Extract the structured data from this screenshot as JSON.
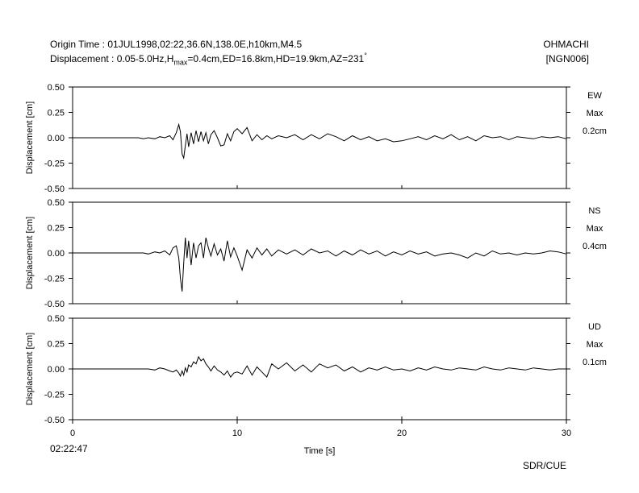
{
  "header": {
    "origin_line": "Origin Time : 01JUL1998,02:22,36.6N,138.0E,h10km,M4.5",
    "disp_prefix": "Displacement : 0.05-5.0Hz,H",
    "disp_sub": "max",
    "disp_suffix": "=0.4cm,ED=16.8km,HD=19.9km,AZ=231",
    "disp_degree": "°",
    "station_owner": "OHMACHI",
    "station_code": "[NGN006]"
  },
  "footer": {
    "start_time": "02:22:47",
    "credit": "SDR/CUE"
  },
  "chart_data": {
    "type": "line",
    "xlabel": "Time [s]",
    "xlim": [
      0,
      30
    ],
    "xticks": [
      "0",
      "10",
      "20",
      "30"
    ],
    "ylabel": "Displacement [cm]",
    "ylim": [
      -0.5,
      0.5
    ],
    "yticks": [
      "0.50",
      "0.25",
      "0.00",
      "-0.25",
      "-0.50"
    ],
    "grid": false,
    "colors": {
      "trace": "#000000",
      "axes": "#000000"
    },
    "series": [
      {
        "name": "EW",
        "max_label": "Max",
        "max_value": "0.2cm",
        "x": [
          0,
          4.0,
          4.3,
          4.6,
          5.0,
          5.3,
          5.6,
          5.9,
          6.1,
          6.3,
          6.45,
          6.55,
          6.65,
          6.75,
          6.85,
          6.95,
          7.05,
          7.2,
          7.35,
          7.5,
          7.65,
          7.8,
          7.95,
          8.1,
          8.25,
          8.4,
          8.6,
          8.8,
          9.0,
          9.2,
          9.4,
          9.6,
          9.8,
          10.0,
          10.3,
          10.6,
          10.9,
          11.2,
          11.5,
          11.8,
          12.1,
          12.5,
          13.0,
          13.5,
          14.0,
          14.5,
          15.0,
          15.5,
          16.0,
          16.5,
          17.0,
          17.5,
          18.0,
          18.5,
          19.0,
          19.5,
          20.0,
          20.5,
          21.0,
          21.5,
          22.0,
          22.5,
          23.0,
          23.5,
          24.0,
          24.5,
          25.0,
          25.5,
          26.0,
          26.5,
          27.0,
          27.5,
          28.0,
          28.5,
          29.0,
          29.5,
          30.0
        ],
        "y": [
          0,
          0,
          -0.01,
          0.0,
          -0.01,
          0.01,
          0.0,
          0.02,
          -0.02,
          0.05,
          0.13,
          0.06,
          -0.16,
          -0.2,
          -0.08,
          0.04,
          -0.09,
          0.05,
          -0.06,
          0.07,
          -0.04,
          0.06,
          -0.03,
          0.05,
          -0.06,
          0.03,
          0.07,
          0.0,
          -0.08,
          -0.07,
          0.04,
          -0.03,
          0.06,
          0.09,
          0.04,
          0.1,
          -0.03,
          0.03,
          -0.02,
          0.02,
          -0.01,
          0.02,
          0.0,
          0.03,
          -0.02,
          0.03,
          -0.01,
          0.04,
          0.01,
          -0.03,
          0.02,
          -0.02,
          0.01,
          -0.03,
          -0.01,
          -0.04,
          -0.03,
          -0.01,
          0.01,
          -0.02,
          0.02,
          -0.01,
          0.03,
          -0.02,
          0.01,
          -0.03,
          0.02,
          0.0,
          0.01,
          -0.02,
          0.01,
          0.0,
          -0.01,
          0.01,
          0.0,
          0.01,
          -0.01
        ]
      },
      {
        "name": "NS",
        "max_label": "Max",
        "max_value": "0.4cm",
        "x": [
          0,
          4.0,
          4.3,
          4.6,
          5.0,
          5.3,
          5.6,
          5.9,
          6.1,
          6.3,
          6.45,
          6.55,
          6.65,
          6.75,
          6.85,
          6.95,
          7.05,
          7.2,
          7.35,
          7.5,
          7.65,
          7.8,
          7.95,
          8.1,
          8.25,
          8.4,
          8.6,
          8.8,
          9.0,
          9.2,
          9.4,
          9.6,
          9.8,
          10.0,
          10.3,
          10.6,
          10.9,
          11.2,
          11.5,
          11.8,
          12.1,
          12.5,
          13.0,
          13.5,
          14.0,
          14.5,
          15.0,
          15.5,
          16.0,
          16.5,
          17.0,
          17.5,
          18.0,
          18.5,
          19.0,
          19.5,
          20.0,
          20.5,
          21.0,
          21.5,
          22.0,
          22.5,
          23.0,
          23.5,
          24.0,
          24.5,
          25.0,
          25.5,
          26.0,
          26.5,
          27.0,
          27.5,
          28.0,
          28.5,
          29.0,
          29.5,
          30.0
        ],
        "y": [
          0,
          0,
          0.0,
          -0.01,
          0.01,
          0.0,
          0.02,
          -0.02,
          0.05,
          0.07,
          -0.05,
          -0.25,
          -0.38,
          -0.1,
          0.15,
          -0.05,
          0.12,
          -0.12,
          0.1,
          -0.05,
          0.07,
          0.1,
          -0.05,
          0.15,
          0.05,
          -0.03,
          0.09,
          -0.02,
          0.04,
          -0.08,
          0.12,
          -0.04,
          0.05,
          -0.03,
          -0.17,
          0.03,
          -0.05,
          0.05,
          -0.02,
          0.04,
          -0.03,
          0.03,
          -0.01,
          0.03,
          -0.02,
          0.04,
          0.0,
          0.02,
          -0.03,
          0.02,
          -0.02,
          0.03,
          -0.01,
          0.02,
          -0.03,
          0.01,
          -0.02,
          0.02,
          -0.01,
          0.01,
          -0.03,
          -0.01,
          0.0,
          -0.02,
          -0.05,
          0.0,
          -0.03,
          0.02,
          -0.01,
          0.0,
          -0.02,
          0.0,
          -0.01,
          0.0,
          0.02,
          0.01,
          -0.01
        ]
      },
      {
        "name": "UD",
        "max_label": "Max",
        "max_value": "0.1cm",
        "x": [
          0,
          4.0,
          4.3,
          4.6,
          5.0,
          5.3,
          5.6,
          5.9,
          6.1,
          6.3,
          6.45,
          6.55,
          6.65,
          6.75,
          6.85,
          6.95,
          7.05,
          7.2,
          7.35,
          7.5,
          7.65,
          7.8,
          7.95,
          8.1,
          8.25,
          8.4,
          8.6,
          8.8,
          9.0,
          9.2,
          9.4,
          9.6,
          9.8,
          10.0,
          10.3,
          10.6,
          10.9,
          11.2,
          11.5,
          11.8,
          12.1,
          12.5,
          13.0,
          13.5,
          14.0,
          14.5,
          15.0,
          15.5,
          16.0,
          16.5,
          17.0,
          17.5,
          18.0,
          18.5,
          19.0,
          19.5,
          20.0,
          20.5,
          21.0,
          21.5,
          22.0,
          22.5,
          23.0,
          23.5,
          24.0,
          24.5,
          25.0,
          25.5,
          26.0,
          26.5,
          27.0,
          27.5,
          28.0,
          28.5,
          29.0,
          29.5,
          30.0
        ],
        "y": [
          0,
          0,
          0.0,
          0.0,
          -0.01,
          0.01,
          0.0,
          -0.02,
          -0.03,
          -0.01,
          -0.04,
          -0.07,
          -0.02,
          -0.06,
          0.01,
          -0.03,
          0.04,
          0.02,
          0.07,
          0.05,
          0.12,
          0.08,
          0.1,
          0.05,
          0.02,
          -0.02,
          0.03,
          -0.01,
          -0.03,
          -0.06,
          -0.02,
          -0.08,
          -0.04,
          -0.03,
          -0.05,
          0.03,
          -0.06,
          0.02,
          -0.03,
          -0.08,
          0.05,
          0.0,
          0.06,
          -0.02,
          0.04,
          -0.03,
          0.05,
          0.01,
          0.04,
          -0.02,
          0.02,
          -0.03,
          0.01,
          -0.01,
          0.02,
          -0.01,
          0.0,
          -0.02,
          0.01,
          -0.01,
          0.02,
          0.0,
          -0.01,
          0.01,
          0.0,
          -0.01,
          0.02,
          0.0,
          -0.01,
          0.01,
          0.0,
          -0.01,
          0.01,
          0.0,
          -0.01,
          0.0,
          0.0
        ]
      }
    ]
  }
}
